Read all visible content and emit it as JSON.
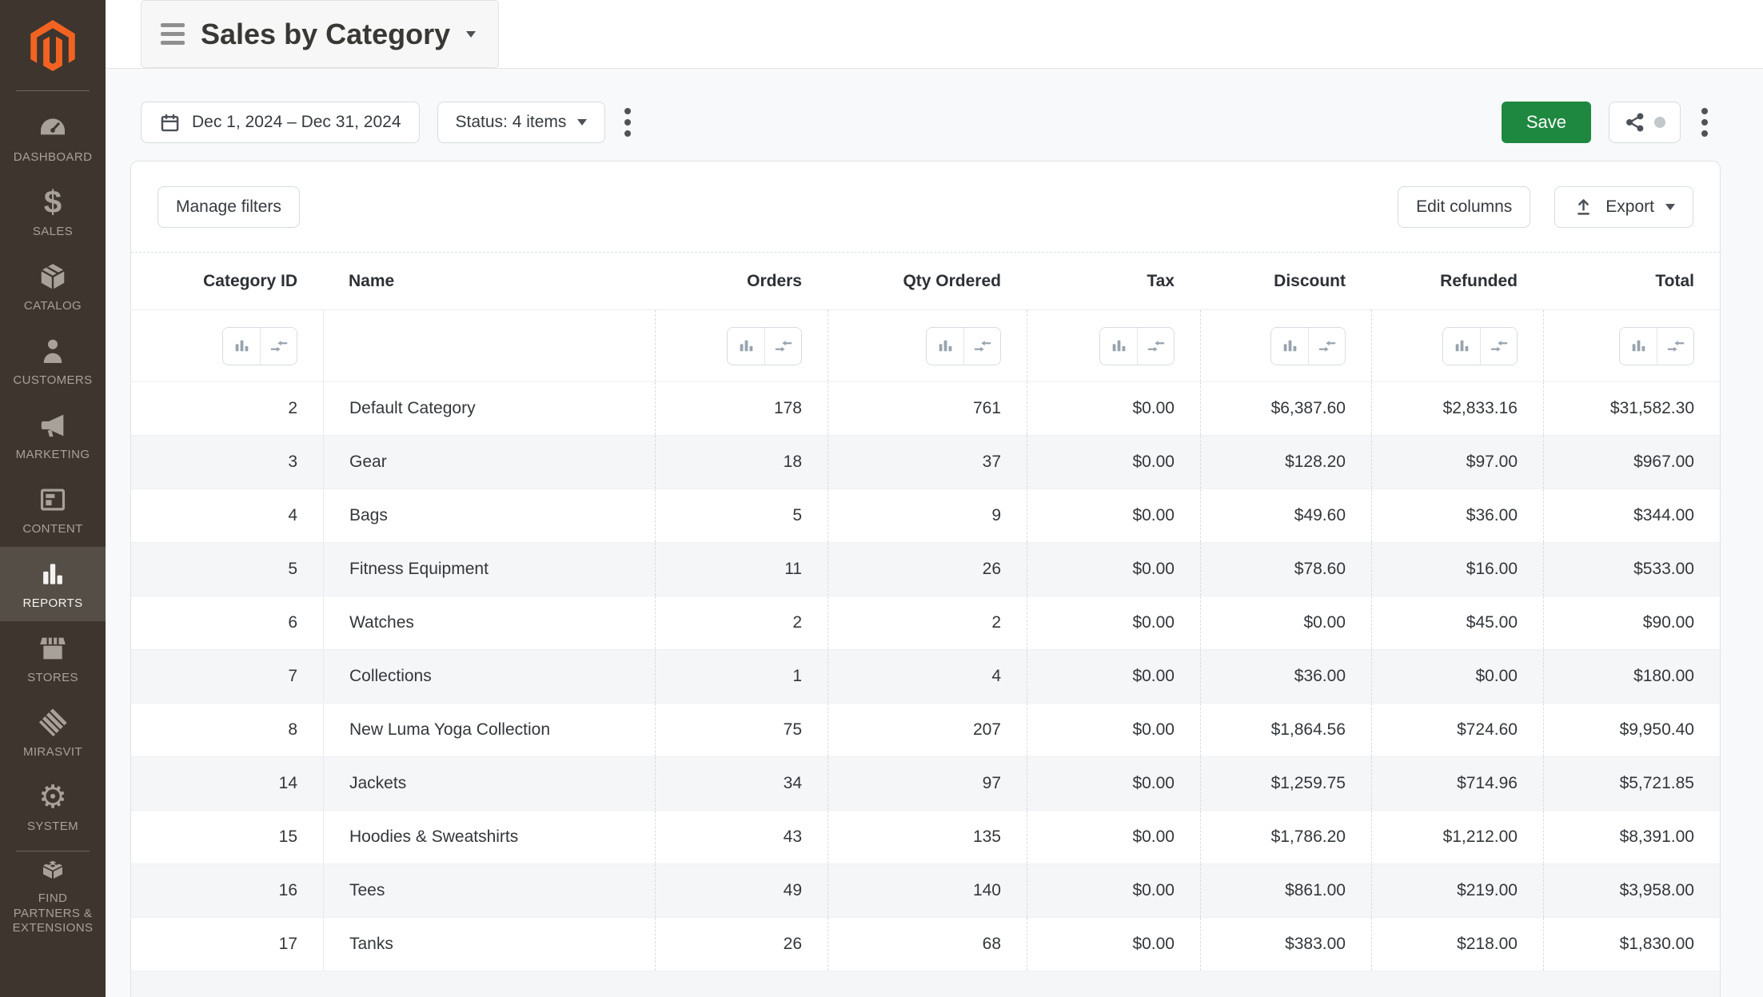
{
  "header": {
    "title": "Sales by Category"
  },
  "sidebar": {
    "items": [
      {
        "label": "DASHBOARD",
        "icon": "dashboard-icon"
      },
      {
        "label": "SALES",
        "icon": "sales-icon"
      },
      {
        "label": "CATALOG",
        "icon": "catalog-icon"
      },
      {
        "label": "CUSTOMERS",
        "icon": "customers-icon"
      },
      {
        "label": "MARKETING",
        "icon": "marketing-icon"
      },
      {
        "label": "CONTENT",
        "icon": "content-icon"
      },
      {
        "label": "REPORTS",
        "icon": "reports-icon",
        "selected": true
      },
      {
        "label": "STORES",
        "icon": "stores-icon"
      },
      {
        "label": "MIRASVIT",
        "icon": "mirasvit-icon"
      },
      {
        "label": "SYSTEM",
        "icon": "system-icon"
      },
      {
        "label": "FIND PARTNERS & EXTENSIONS",
        "icon": "extensions-icon"
      }
    ]
  },
  "toolbar": {
    "date_range": "Dec 1, 2024 – Dec 31, 2024",
    "status_filter": "Status: 4 items",
    "save_label": "Save"
  },
  "card": {
    "manage_filters_label": "Manage filters",
    "edit_columns_label": "Edit columns",
    "export_label": "Export"
  },
  "table": {
    "columns": [
      {
        "label": "Category ID",
        "align": "right",
        "filters": true
      },
      {
        "label": "Name",
        "align": "left",
        "filters": false
      },
      {
        "label": "Orders",
        "align": "right",
        "filters": true
      },
      {
        "label": "Qty Ordered",
        "align": "right",
        "filters": true
      },
      {
        "label": "Tax",
        "align": "right",
        "filters": true
      },
      {
        "label": "Discount",
        "align": "right",
        "filters": true
      },
      {
        "label": "Refunded",
        "align": "right",
        "filters": true
      },
      {
        "label": "Total",
        "align": "right",
        "filters": true
      }
    ],
    "rows": [
      [
        "2",
        "Default Category",
        "178",
        "761",
        "$0.00",
        "$6,387.60",
        "$2,833.16",
        "$31,582.30"
      ],
      [
        "3",
        "Gear",
        "18",
        "37",
        "$0.00",
        "$128.20",
        "$97.00",
        "$967.00"
      ],
      [
        "4",
        "Bags",
        "5",
        "9",
        "$0.00",
        "$49.60",
        "$36.00",
        "$344.00"
      ],
      [
        "5",
        "Fitness Equipment",
        "11",
        "26",
        "$0.00",
        "$78.60",
        "$16.00",
        "$533.00"
      ],
      [
        "6",
        "Watches",
        "2",
        "2",
        "$0.00",
        "$0.00",
        "$45.00",
        "$90.00"
      ],
      [
        "7",
        "Collections",
        "1",
        "4",
        "$0.00",
        "$36.00",
        "$0.00",
        "$180.00"
      ],
      [
        "8",
        "New Luma Yoga Collection",
        "75",
        "207",
        "$0.00",
        "$1,864.56",
        "$724.60",
        "$9,950.40"
      ],
      [
        "14",
        "Jackets",
        "34",
        "97",
        "$0.00",
        "$1,259.75",
        "$714.96",
        "$5,721.85"
      ],
      [
        "15",
        "Hoodies & Sweatshirts",
        "43",
        "135",
        "$0.00",
        "$1,786.20",
        "$1,212.00",
        "$8,391.00"
      ],
      [
        "16",
        "Tees",
        "49",
        "140",
        "$0.00",
        "$861.00",
        "$219.00",
        "$3,958.00"
      ],
      [
        "17",
        "Tanks",
        "26",
        "68",
        "$0.00",
        "$383.00",
        "$218.00",
        "$1,830.00"
      ]
    ]
  },
  "colors": {
    "sidebar_bg": "#3d352e",
    "sidebar_selected_bg": "#554e47",
    "logo_orange": "#f26322",
    "save_green": "#1f8840",
    "page_bg": "#f8f9fa",
    "row_stripe": "#f5f6f8"
  }
}
